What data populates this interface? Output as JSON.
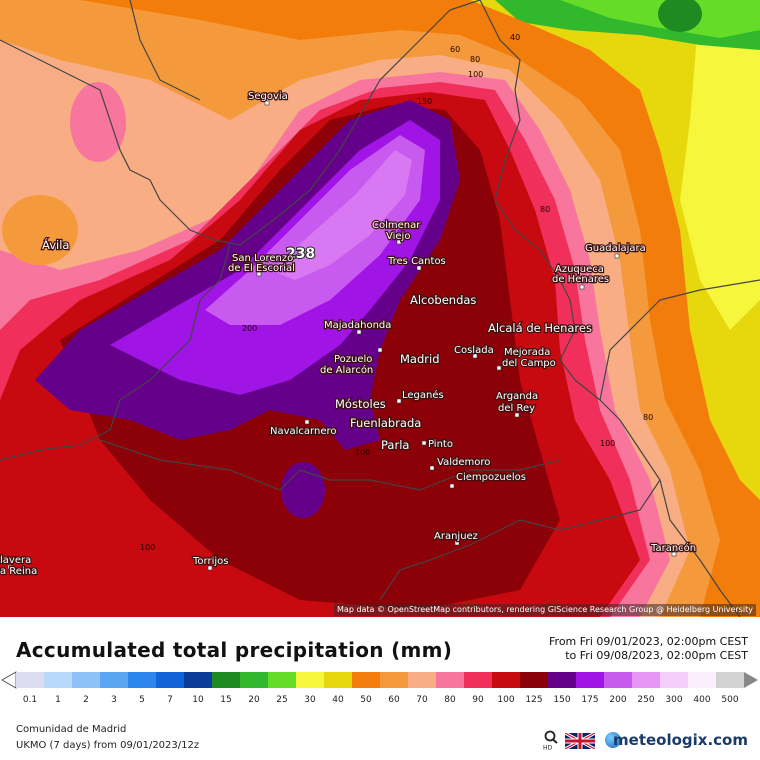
{
  "map": {
    "attribution": "Map data © OpenStreetMap contributors, rendering GIScience Research Group @ Heidelberg University",
    "max_value": "238",
    "contour_labels": [
      "60",
      "40",
      "80",
      "100",
      "150",
      "200",
      "80",
      "80",
      "100",
      "100",
      "100"
    ],
    "cities": [
      {
        "name": "Segovia"
      },
      {
        "name": "Ávila"
      },
      {
        "name": "San Lorenzo"
      },
      {
        "name": "de El Escorial"
      },
      {
        "name": "Colmenar"
      },
      {
        "name": "Viejo"
      },
      {
        "name": "Tres Cantos"
      },
      {
        "name": "Alcobendas"
      },
      {
        "name": "Guadalajara"
      },
      {
        "name": "Azuqueca"
      },
      {
        "name": "de Henares"
      },
      {
        "name": "Majadahonda"
      },
      {
        "name": "Alcalá de Henares"
      },
      {
        "name": "Pozuelo"
      },
      {
        "name": "de Alarcón"
      },
      {
        "name": "Madrid"
      },
      {
        "name": "Coslada"
      },
      {
        "name": "Mejorada"
      },
      {
        "name": "del Campo"
      },
      {
        "name": "Leganés"
      },
      {
        "name": "Móstoles"
      },
      {
        "name": "Arganda"
      },
      {
        "name": "del Rey"
      },
      {
        "name": "Fuenlabrada"
      },
      {
        "name": "Navalcarnero"
      },
      {
        "name": "Parla"
      },
      {
        "name": "Pinto"
      },
      {
        "name": "Valdemoro"
      },
      {
        "name": "Ciempozuelos"
      },
      {
        "name": "Aranjuez"
      },
      {
        "name": "Torrijos"
      },
      {
        "name": "Tarancón"
      },
      {
        "name": "lavera"
      },
      {
        "name": "a Reina"
      }
    ]
  },
  "header": {
    "title": "Accumulated total precipitation (mm)",
    "period_from": "From Fri 09/01/2023, 02:00pm CEST",
    "period_to": "to Fri 09/08/2023, 02:00pm CEST"
  },
  "legend": {
    "ticks": [
      "0.1",
      "1",
      "2",
      "3",
      "5",
      "7",
      "10",
      "15",
      "20",
      "25",
      "30",
      "40",
      "50",
      "60",
      "70",
      "80",
      "90",
      "100",
      "125",
      "150",
      "175",
      "200",
      "250",
      "300",
      "400",
      "500"
    ],
    "colors": [
      "#dcdcf0",
      "#b8d8fa",
      "#8cc2f8",
      "#5aa6f2",
      "#2c86ec",
      "#1064d8",
      "#0a3c9a",
      "#1e8a22",
      "#32b82c",
      "#64dc28",
      "#f6f63c",
      "#e6d80c",
      "#f27d0a",
      "#f59a3c",
      "#f8ad84",
      "#f8769e",
      "#f0305a",
      "#c80a10",
      "#8c0008",
      "#64008a",
      "#a014e6",
      "#c85af0",
      "#e696f4",
      "#f5cdfa",
      "#faeefc",
      "#d2d2d2"
    ]
  },
  "footer": {
    "region": "Comunidad de Madrid",
    "model": "UKMO (7 days) from 09/01/2023/12z",
    "brand": "meteologix.com",
    "search_sub": "HD"
  }
}
